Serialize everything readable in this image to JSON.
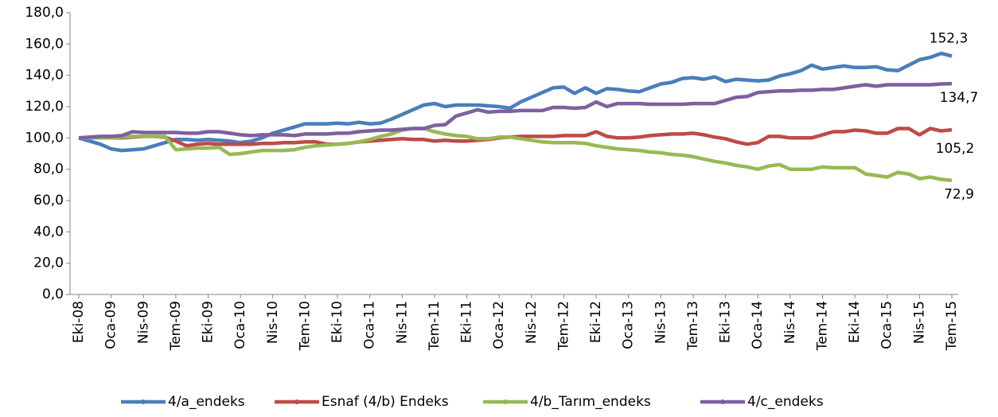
{
  "chart_data": {
    "type": "line",
    "categories": [
      "Eki-08",
      null,
      null,
      "Oca-09",
      null,
      null,
      "Nis-09",
      null,
      null,
      "Tem-09",
      null,
      null,
      "Eki-09",
      null,
      null,
      "Oca-10",
      null,
      null,
      "Nis-10",
      null,
      null,
      "Tem-10",
      null,
      null,
      "Eki-10",
      null,
      null,
      "Oca-11",
      null,
      null,
      "Nis-11",
      null,
      null,
      "Tem-11",
      null,
      null,
      "Eki-11",
      null,
      null,
      "Oca-12",
      null,
      null,
      "Nis-12",
      null,
      null,
      "Tem-12",
      null,
      null,
      "Eki-12",
      null,
      null,
      "Oca-13",
      null,
      null,
      "Nis-13",
      null,
      null,
      "Tem-13",
      null,
      null,
      "Eki-13",
      null,
      null,
      "Oca-14",
      null,
      null,
      "Nis-14",
      null,
      null,
      "Tem-14",
      null,
      null,
      "Eki-14",
      null,
      null,
      "Oca-15",
      null,
      null,
      "Nis-15",
      null,
      null,
      "Tem-15"
    ],
    "series": [
      {
        "name": "4/a_endeks",
        "color": "#4a7ebb",
        "values": [
          100,
          98,
          96,
          93,
          92,
          92.5,
          93,
          95,
          97,
          99,
          99,
          98.5,
          99,
          98.5,
          98,
          97,
          98,
          100,
          103,
          105,
          107,
          109,
          109,
          109,
          109.5,
          109,
          110,
          109,
          109.5,
          112,
          115,
          118,
          121,
          122,
          120,
          121,
          121,
          121,
          120.5,
          120,
          119,
          123,
          126,
          129,
          132,
          132.5,
          128.5,
          132,
          128.5,
          131.5,
          131,
          130,
          129.5,
          132,
          134.5,
          135.5,
          138,
          138.5,
          137.5,
          139,
          136,
          137.5,
          137,
          136.5,
          137,
          139.5,
          141,
          143,
          146.5,
          144,
          145,
          146,
          145,
          145,
          145.5,
          143.5,
          143,
          146.5,
          150,
          151.5,
          154,
          152.3
        ],
        "value_labels": [
          null,
          null,
          null,
          null,
          null,
          null,
          null,
          null,
          null,
          null,
          null,
          null,
          null,
          null,
          null,
          null,
          null,
          null,
          null,
          null,
          null,
          null,
          null,
          null,
          null,
          null,
          null,
          null,
          null,
          null,
          null,
          null,
          null,
          null,
          null,
          null,
          null,
          null,
          null,
          null,
          null,
          null,
          null,
          null,
          null,
          null,
          null,
          null,
          null,
          null,
          null,
          null,
          null,
          null,
          null,
          null,
          null,
          null,
          null,
          null,
          null,
          null,
          null,
          null,
          null,
          null,
          null,
          null,
          null,
          null,
          null,
          null,
          null,
          null,
          null,
          null,
          null,
          null,
          null,
          null,
          null,
          "152,3"
        ]
      },
      {
        "name": "Esnaf (4/b) Endeks",
        "color": "#be4b48",
        "values": [
          100,
          100,
          100,
          100,
          100,
          100.5,
          101,
          101,
          100.5,
          98,
          95,
          96,
          96.5,
          96,
          96,
          96,
          96,
          96.5,
          96.5,
          97,
          97,
          97.5,
          97.5,
          96,
          96,
          96.5,
          97.5,
          98,
          98.5,
          99,
          99.5,
          99,
          99,
          98,
          98.5,
          98,
          98,
          98.5,
          99,
          100,
          100.5,
          101,
          101,
          101,
          101,
          101.5,
          101.5,
          101.5,
          104,
          101,
          100,
          100,
          100.5,
          101.5,
          102,
          102.5,
          102.5,
          103,
          102,
          100.5,
          99.5,
          97.5,
          96,
          97,
          101,
          101,
          100,
          100,
          100,
          102,
          104,
          104,
          105,
          104.5,
          103,
          103,
          106,
          106,
          102,
          106,
          104.5,
          105.2
        ],
        "value_labels": [
          null,
          null,
          null,
          null,
          null,
          null,
          null,
          null,
          null,
          null,
          null,
          null,
          null,
          null,
          null,
          null,
          null,
          null,
          null,
          null,
          null,
          null,
          null,
          null,
          null,
          null,
          null,
          null,
          null,
          null,
          null,
          null,
          null,
          null,
          null,
          null,
          null,
          null,
          null,
          null,
          null,
          null,
          null,
          null,
          null,
          null,
          null,
          null,
          null,
          null,
          null,
          null,
          null,
          null,
          null,
          null,
          null,
          null,
          null,
          null,
          null,
          null,
          null,
          null,
          null,
          null,
          null,
          null,
          null,
          null,
          null,
          null,
          null,
          null,
          null,
          null,
          null,
          null,
          null,
          null,
          null,
          "105,2"
        ]
      },
      {
        "name": "4/b_Tarım_endeks",
        "color": "#98b954",
        "values": [
          100,
          100,
          100,
          100,
          100.5,
          101,
          101,
          101,
          101,
          92.5,
          93,
          93.5,
          93.5,
          94,
          89.5,
          90,
          91,
          92,
          92,
          92,
          92.5,
          94,
          95,
          95.5,
          96,
          96.5,
          97.5,
          99,
          101,
          102.5,
          105,
          106,
          106,
          104,
          102.5,
          101.5,
          101,
          99.5,
          99.5,
          100.5,
          100.5,
          99.5,
          98.5,
          97.5,
          97,
          97,
          97,
          96.5,
          95,
          94,
          93,
          92.5,
          92,
          91,
          90.5,
          89.5,
          89,
          88,
          86.5,
          85,
          84,
          82.5,
          81.5,
          80,
          82,
          83,
          80,
          80,
          80,
          81.5,
          81,
          81,
          81,
          77,
          76,
          75,
          78,
          77,
          74,
          75,
          73.5,
          72.9
        ],
        "value_labels": [
          null,
          null,
          null,
          null,
          null,
          null,
          null,
          null,
          null,
          null,
          null,
          null,
          null,
          null,
          null,
          null,
          null,
          null,
          null,
          null,
          null,
          null,
          null,
          null,
          null,
          null,
          null,
          null,
          null,
          null,
          null,
          null,
          null,
          null,
          null,
          null,
          null,
          null,
          null,
          null,
          null,
          null,
          null,
          null,
          null,
          null,
          null,
          null,
          null,
          null,
          null,
          null,
          null,
          null,
          null,
          null,
          null,
          null,
          null,
          null,
          null,
          null,
          null,
          null,
          null,
          null,
          null,
          null,
          null,
          null,
          null,
          null,
          null,
          null,
          null,
          null,
          null,
          null,
          null,
          null,
          null,
          "72,9"
        ]
      },
      {
        "name": "4/c_endeks",
        "color": "#7d60a0",
        "values": [
          100,
          100.5,
          101,
          101,
          101.5,
          104,
          103.5,
          103.5,
          103.5,
          103.5,
          103,
          103,
          104,
          104,
          103,
          102,
          101.5,
          102,
          102,
          102,
          101.5,
          102.5,
          102.5,
          102.5,
          103,
          103,
          104,
          104.5,
          105,
          105,
          105.5,
          106,
          106,
          108,
          108.5,
          114,
          116,
          118,
          116.5,
          117,
          117,
          117.5,
          117.5,
          117.5,
          119.5,
          119.5,
          119,
          119.5,
          123,
          120,
          122,
          122,
          122,
          121.5,
          121.5,
          121.5,
          121.5,
          122,
          122,
          122,
          124,
          126,
          126.5,
          129,
          129.5,
          130,
          130,
          130.5,
          130.5,
          131,
          131,
          132,
          133,
          134,
          133,
          134,
          134,
          134,
          134,
          134,
          134.5,
          134.7
        ],
        "value_labels": [
          null,
          null,
          null,
          null,
          null,
          null,
          null,
          null,
          null,
          null,
          null,
          null,
          null,
          null,
          null,
          null,
          null,
          null,
          null,
          null,
          null,
          null,
          null,
          null,
          null,
          null,
          null,
          null,
          null,
          null,
          null,
          null,
          null,
          null,
          null,
          null,
          null,
          null,
          null,
          null,
          null,
          null,
          null,
          null,
          null,
          null,
          null,
          null,
          null,
          null,
          null,
          null,
          null,
          null,
          null,
          null,
          null,
          null,
          null,
          null,
          null,
          null,
          null,
          null,
          null,
          null,
          null,
          null,
          null,
          null,
          null,
          null,
          null,
          null,
          null,
          null,
          null,
          null,
          null,
          null,
          null,
          "134,7"
        ]
      }
    ],
    "ylim": [
      0,
      180
    ],
    "yticks": [
      {
        "value": 0,
        "label": "0,0"
      },
      {
        "value": 20,
        "label": "20,0"
      },
      {
        "value": 40,
        "label": "40,0"
      },
      {
        "value": 60,
        "label": "60,0"
      },
      {
        "value": 80,
        "label": "80,0"
      },
      {
        "value": 100,
        "label": "100,0"
      },
      {
        "value": 120,
        "label": "120,0"
      },
      {
        "value": 140,
        "label": "140,0"
      },
      {
        "value": 160,
        "label": "160,0"
      },
      {
        "value": 180,
        "label": "180,0"
      }
    ],
    "grid": false,
    "legend": "bottom"
  }
}
